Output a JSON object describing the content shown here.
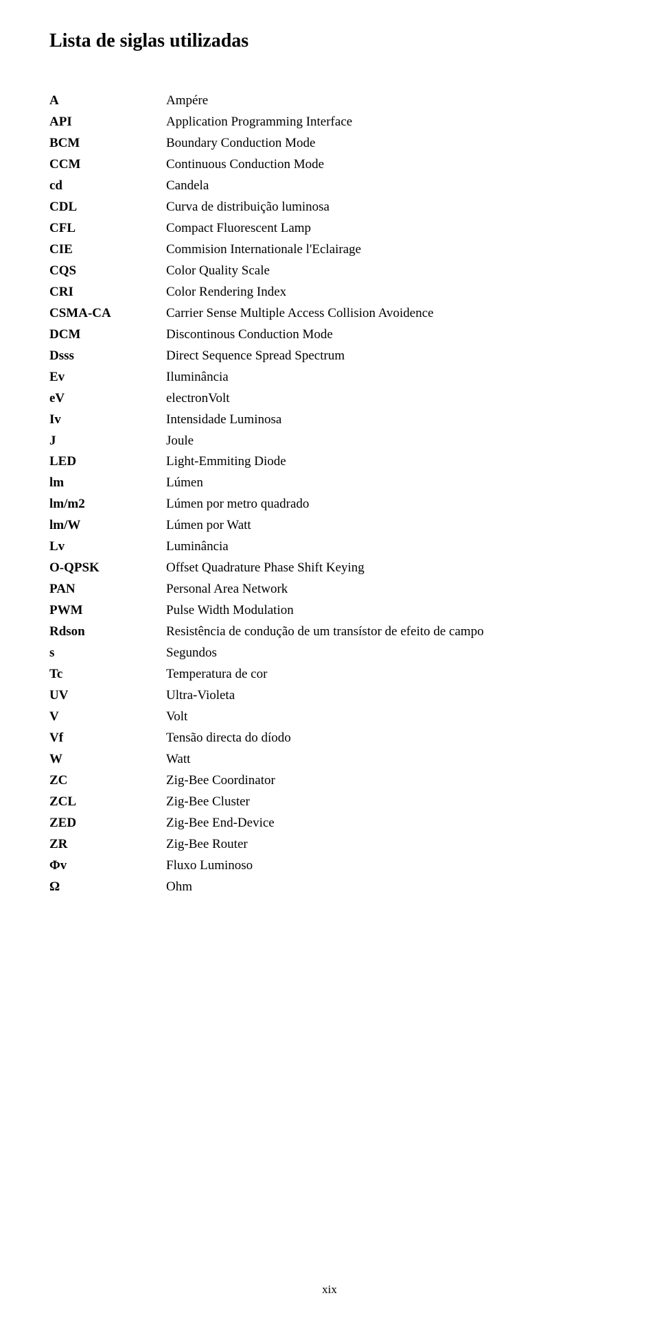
{
  "title": "Lista de siglas utilizadas",
  "entries": [
    {
      "abbrev": "A",
      "def": "Ampére"
    },
    {
      "abbrev": "API",
      "def": "Application Programming Interface"
    },
    {
      "abbrev": "BCM",
      "def": "Boundary Conduction Mode"
    },
    {
      "abbrev": "CCM",
      "def": "Continuous Conduction Mode"
    },
    {
      "abbrev": "cd",
      "def": "Candela"
    },
    {
      "abbrev": "CDL",
      "def": "Curva de distribuição luminosa"
    },
    {
      "abbrev": "CFL",
      "def": "Compact Fluorescent Lamp"
    },
    {
      "abbrev": "CIE",
      "def": "Commision Internationale l'Eclairage"
    },
    {
      "abbrev": "CQS",
      "def": "Color Quality Scale"
    },
    {
      "abbrev": "CRI",
      "def": "Color Rendering Index"
    },
    {
      "abbrev": "CSMA-CA",
      "def": "Carrier Sense Multiple Access Collision Avoidence"
    },
    {
      "abbrev": "DCM",
      "def": "Discontinous Conduction Mode"
    },
    {
      "abbrev": "Dsss",
      "def": "Direct Sequence Spread Spectrum"
    },
    {
      "abbrev": "Ev",
      "def": "Iluminância"
    },
    {
      "abbrev": "eV",
      "def": "electronVolt"
    },
    {
      "abbrev": "Iv",
      "def": "Intensidade Luminosa"
    },
    {
      "abbrev": "J",
      "def": "Joule"
    },
    {
      "abbrev": "LED",
      "def": "Light-Emmiting Diode"
    },
    {
      "abbrev": "lm",
      "def": "Lúmen"
    },
    {
      "abbrev": "lm/m2",
      "def": "Lúmen por metro quadrado"
    },
    {
      "abbrev": "lm/W",
      "def": "Lúmen por Watt"
    },
    {
      "abbrev": "Lv",
      "def": "Luminância"
    },
    {
      "abbrev": "O-QPSK",
      "def": "Offset Quadrature Phase Shift Keying"
    },
    {
      "abbrev": "PAN",
      "def": "Personal Area Network"
    },
    {
      "abbrev": "PWM",
      "def": "Pulse Width Modulation"
    },
    {
      "abbrev": "Rdson",
      "def": "Resistência de condução de um transístor de efeito de campo"
    },
    {
      "abbrev": "s",
      "def": "Segundos"
    },
    {
      "abbrev": "Tc",
      "def": "Temperatura de cor"
    },
    {
      "abbrev": "UV",
      "def": "Ultra-Violeta"
    },
    {
      "abbrev": "V",
      "def": "Volt"
    },
    {
      "abbrev": "Vf",
      "def": "Tensão directa do díodo"
    },
    {
      "abbrev": "W",
      "def": "Watt"
    },
    {
      "abbrev": "ZC",
      "def": "Zig-Bee Coordinator"
    },
    {
      "abbrev": "ZCL",
      "def": "Zig-Bee Cluster"
    },
    {
      "abbrev": "ZED",
      "def": "Zig-Bee End-Device"
    },
    {
      "abbrev": "ZR",
      "def": "Zig-Bee Router"
    },
    {
      "abbrev": "Φv",
      "def": "Fluxo Luminoso"
    },
    {
      "abbrev": "Ω",
      "def": "Ohm"
    }
  ],
  "page_number": "xix"
}
